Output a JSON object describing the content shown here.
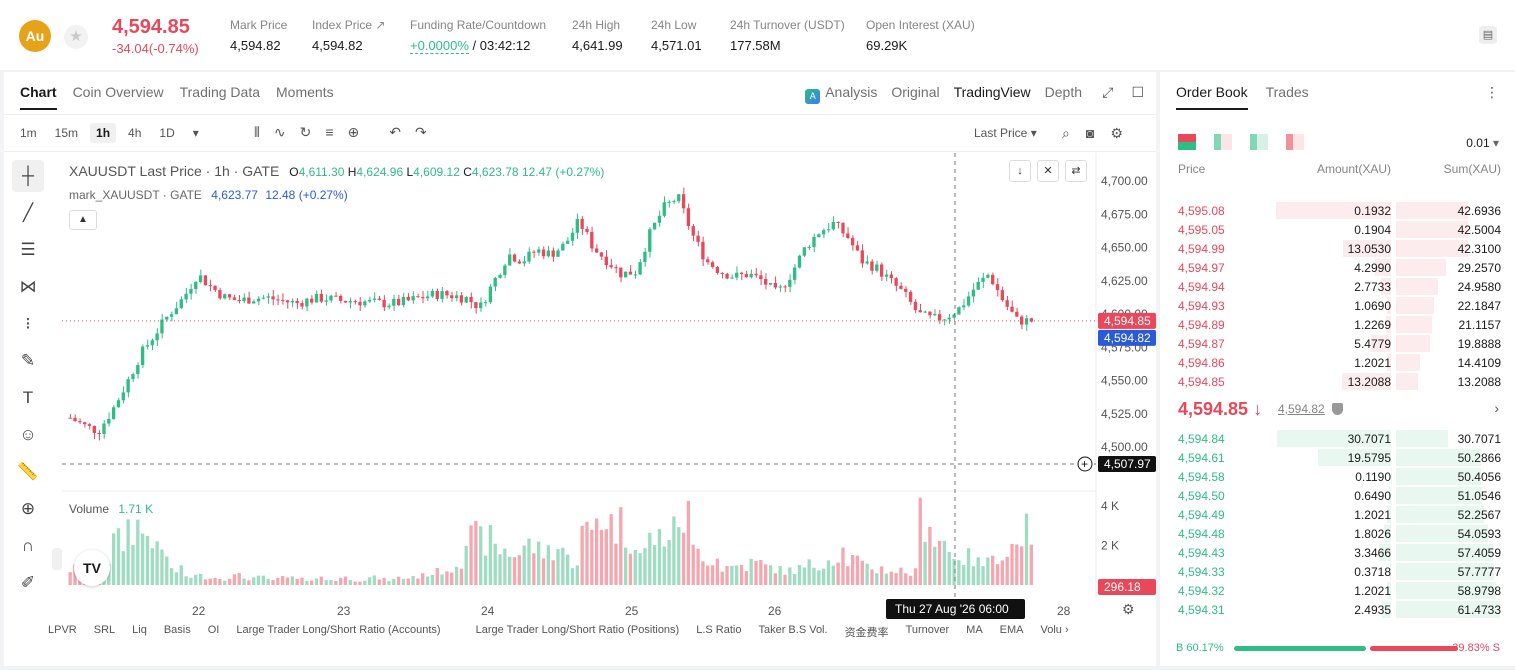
{
  "header": {
    "coin_badge": "Au",
    "last_price": "4,594.85",
    "change": "-34.04(-0.74%)",
    "stats": [
      {
        "label": "Mark Price",
        "value": "4,594.82"
      },
      {
        "label": "Index Price ↗",
        "value": "4,594.82"
      },
      {
        "label": "Funding Rate/Countdown",
        "value": "+0.0000%",
        "value2": " / 03:42:12"
      },
      {
        "label": "24h High",
        "value": "4,641.99"
      },
      {
        "label": "24h Low",
        "value": "4,571.01"
      },
      {
        "label": "24h Turnover (USDT)",
        "value": "177.58M"
      },
      {
        "label": "Open Interest (XAU)",
        "value": "69.29K"
      }
    ]
  },
  "chart_panel": {
    "tabs": [
      "Chart",
      "Coin Overview",
      "Trading Data",
      "Moments"
    ],
    "view_tabs": [
      "Analysis",
      "Original",
      "TradingView",
      "Depth"
    ],
    "intervals": [
      "1m",
      "15m",
      "1h",
      "4h",
      "1D"
    ],
    "selected_interval": "1h",
    "price_type": "Last Price",
    "legend": {
      "symbol": "XAUUSDT Last Price · 1h · GATE",
      "o_label": "O",
      "o": "4,611.30",
      "h_label": "H",
      "h": "4,624.96",
      "l_label": "L",
      "l": "4,609.12",
      "c_label": "C",
      "c": "4,623.78",
      "chg": "12.47 (+0.27%)",
      "mark_label": "mark_XAUUSDT · GATE",
      "mark_value": "4,623.77",
      "mark_chg": "12.48 (+0.27%)"
    },
    "volume_label": "Volume",
    "volume_value": "1.71 K",
    "price_axis": [
      "4,700.00",
      "4,675.00",
      "4,650.00",
      "4,625.00",
      "4,600.00",
      "4,575.00",
      "4,550.00",
      "4,525.00",
      "4,500.00"
    ],
    "volume_axis": [
      "4 K",
      "2 K"
    ],
    "time_axis": [
      "22",
      "23",
      "24",
      "25",
      "26",
      "28"
    ],
    "last_price_tag": "4,594.85",
    "mark_price_tag": "4,594.82",
    "crosshair_price": "4,507.97",
    "crosshair_time": "Thu 27 Aug '26   06:00",
    "volume_tag": "296.18",
    "indicators": [
      "LPVR",
      "SRL",
      "Liq",
      "Basis",
      "OI",
      "Large Trader Long/Short Ratio (Accounts)",
      "Large Trader Long/Short Ratio (Positions)",
      "L.S Ratio",
      "Taker B.S Vol.",
      "资金费率",
      "Turnover",
      "MA",
      "EMA",
      "Volu"
    ],
    "colors": {
      "up": "#2ebd85",
      "down": "#e8485a"
    }
  },
  "chart_data": {
    "type": "candlestick",
    "y_range": [
      4500,
      4700
    ],
    "volume_range": [
      0,
      4000
    ],
    "ohlc_path_closes": [
      4522,
      4516,
      4512,
      4528,
      4548,
      4570,
      4585,
      4600,
      4612,
      4630,
      4620,
      4612,
      4610,
      4612,
      4612,
      4610,
      4608,
      4611,
      4612,
      4610,
      4610,
      4609,
      4608,
      4608,
      4610,
      4613,
      4615,
      4614,
      4612,
      4605,
      4625,
      4645,
      4640,
      4648,
      4645,
      4652,
      4670,
      4650,
      4640,
      4630,
      4632,
      4660,
      4680,
      4688,
      4660,
      4640,
      4632,
      4628,
      4630,
      4625,
      4615,
      4630,
      4650,
      4662,
      4668,
      4658,
      4640,
      4635,
      4625,
      4615,
      4600,
      4596,
      4598,
      4605,
      4620,
      4630,
      4610,
      4595,
      4594.85
    ],
    "volume_samples": [
      900,
      1100,
      1500,
      2400,
      3300,
      2900,
      1800,
      800,
      500,
      500,
      400,
      500,
      400,
      400,
      300,
      400,
      300,
      400,
      300,
      400,
      300,
      400,
      300,
      400,
      500,
      700,
      900,
      1500,
      2600,
      2500,
      2000,
      1800,
      2200,
      1900,
      2100,
      1400,
      2900,
      3900,
      3400,
      2800,
      1800,
      2600,
      2900,
      3800,
      1900,
      1500,
      1000,
      1100,
      1200,
      1000,
      800,
      900,
      1100,
      1500,
      1900,
      1400,
      1000,
      900,
      800,
      700,
      3900,
      2500,
      1800,
      1500,
      1200,
      1900,
      2100,
      3100,
      1710
    ]
  },
  "orderbook": {
    "tabs": [
      "Order Book",
      "Trades"
    ],
    "precision": "0.01",
    "headers": {
      "price": "Price",
      "amount": "Amount(XAU)",
      "sum": "Sum(XAU)"
    },
    "asks": [
      {
        "price": "4,595.08",
        "amount": "0.1932",
        "sum": "42.6936"
      },
      {
        "price": "4,595.05",
        "amount": "0.1904",
        "sum": "42.5004"
      },
      {
        "price": "4,594.99",
        "amount": "13.0530",
        "sum": "42.3100"
      },
      {
        "price": "4,594.97",
        "amount": "4.2990",
        "sum": "29.2570"
      },
      {
        "price": "4,594.94",
        "amount": "2.7733",
        "sum": "24.9580"
      },
      {
        "price": "4,594.93",
        "amount": "1.0690",
        "sum": "22.1847"
      },
      {
        "price": "4,594.89",
        "amount": "1.2269",
        "sum": "21.1157"
      },
      {
        "price": "4,594.87",
        "amount": "5.4779",
        "sum": "19.8888"
      },
      {
        "price": "4,594.86",
        "amount": "1.2021",
        "sum": "14.4109"
      },
      {
        "price": "4,594.85",
        "amount": "13.2088",
        "sum": "13.2088"
      }
    ],
    "mid_price": "4,594.85 ↓",
    "mid_mark": "4,594.82",
    "bids": [
      {
        "price": "4,594.84",
        "amount": "30.7071",
        "sum": "30.7071"
      },
      {
        "price": "4,594.61",
        "amount": "19.5795",
        "sum": "50.2866"
      },
      {
        "price": "4,594.58",
        "amount": "0.1190",
        "sum": "50.4056"
      },
      {
        "price": "4,594.50",
        "amount": "0.6490",
        "sum": "51.0546"
      },
      {
        "price": "4,594.49",
        "amount": "1.2021",
        "sum": "52.2567"
      },
      {
        "price": "4,594.48",
        "amount": "1.8026",
        "sum": "54.0593"
      },
      {
        "price": "4,594.43",
        "amount": "3.3466",
        "sum": "57.4059"
      },
      {
        "price": "4,594.33",
        "amount": "0.3718",
        "sum": "57.7777"
      },
      {
        "price": "4,594.32",
        "amount": "1.2021",
        "sum": "58.9798"
      },
      {
        "price": "4,594.31",
        "amount": "2.4935",
        "sum": "61.4733"
      }
    ],
    "buy_ratio": "B 60.17%",
    "sell_ratio": "39.83% S",
    "buy_ratio_value": 60.17
  }
}
